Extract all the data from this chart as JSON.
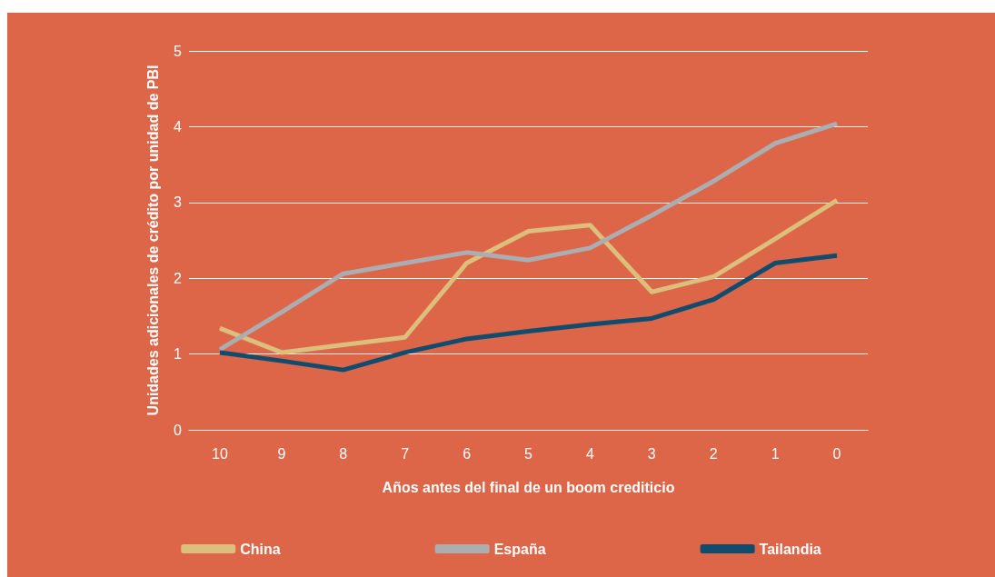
{
  "chart_data": {
    "type": "line",
    "xlabel": "Años antes del final de un boom crediticio",
    "ylabel": "Unidades adicionales de crédito por unidad de PBI",
    "categories": [
      "10",
      "9",
      "8",
      "7",
      "6",
      "5",
      "4",
      "3",
      "2",
      "1",
      "0"
    ],
    "series": [
      {
        "name": "China",
        "color": "#dcbf7c",
        "values": [
          1.34,
          1.02,
          1.12,
          1.22,
          2.2,
          2.62,
          2.7,
          1.82,
          2.02,
          2.52,
          3.03
        ]
      },
      {
        "name": "España",
        "color": "#abadb0",
        "values": [
          1.06,
          1.55,
          2.06,
          2.2,
          2.34,
          2.24,
          2.4,
          2.83,
          3.28,
          3.78,
          4.04
        ]
      },
      {
        "name": "Tailandia",
        "color": "#0f4c6e",
        "values": [
          1.02,
          0.91,
          0.79,
          1.02,
          1.2,
          1.3,
          1.39,
          1.47,
          1.72,
          2.2,
          2.3
        ]
      }
    ],
    "ylim": [
      0,
      5
    ],
    "yticks": [
      0,
      1,
      2,
      3,
      4,
      5
    ],
    "grid": "y",
    "legend": "bottom",
    "marker": "none",
    "line_style": "solid"
  }
}
